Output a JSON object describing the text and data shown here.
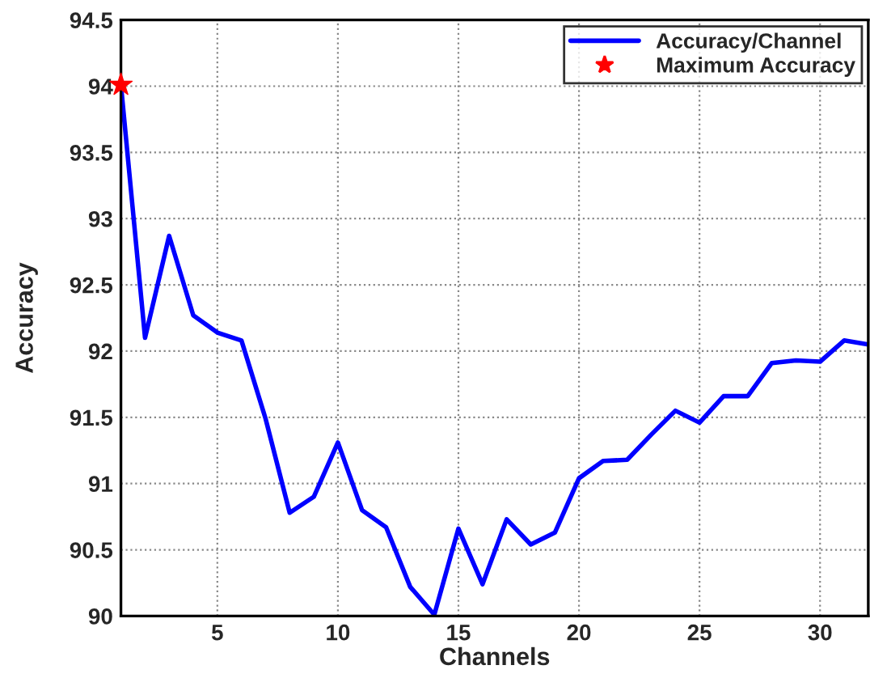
{
  "chart_data": {
    "type": "line",
    "xlabel": "Channels",
    "ylabel": "Accuracy",
    "x": [
      1,
      2,
      3,
      4,
      5,
      6,
      7,
      8,
      9,
      10,
      11,
      12,
      13,
      14,
      15,
      16,
      17,
      18,
      19,
      20,
      21,
      22,
      23,
      24,
      25,
      26,
      27,
      28,
      29,
      30,
      31,
      32
    ],
    "series": [
      {
        "name": "Accuracy/Channel",
        "color": "#0000ff",
        "marker": "none",
        "line_style": "solid",
        "values": [
          94.01,
          92.1,
          92.87,
          92.27,
          92.14,
          92.08,
          91.49,
          90.78,
          90.9,
          91.31,
          90.8,
          90.67,
          90.22,
          90.01,
          90.66,
          90.24,
          90.73,
          90.54,
          90.63,
          91.04,
          91.17,
          91.18,
          91.37,
          91.55,
          91.46,
          91.66,
          91.66,
          91.91,
          91.93,
          91.92,
          92.08,
          92.05
        ]
      },
      {
        "name": "Maximum Accuracy",
        "color": "#ff0000",
        "type": "scatter",
        "marker": "star",
        "x": [
          1
        ],
        "values": [
          94.01
        ]
      }
    ],
    "xlim": [
      1,
      32
    ],
    "xticks": [
      5,
      10,
      15,
      20,
      25,
      30
    ],
    "ylim": [
      90,
      94.5
    ],
    "yticks": [
      90,
      90.5,
      91,
      91.5,
      92,
      92.5,
      93,
      93.5,
      94,
      94.5
    ],
    "grid": true,
    "legend": "top right"
  }
}
